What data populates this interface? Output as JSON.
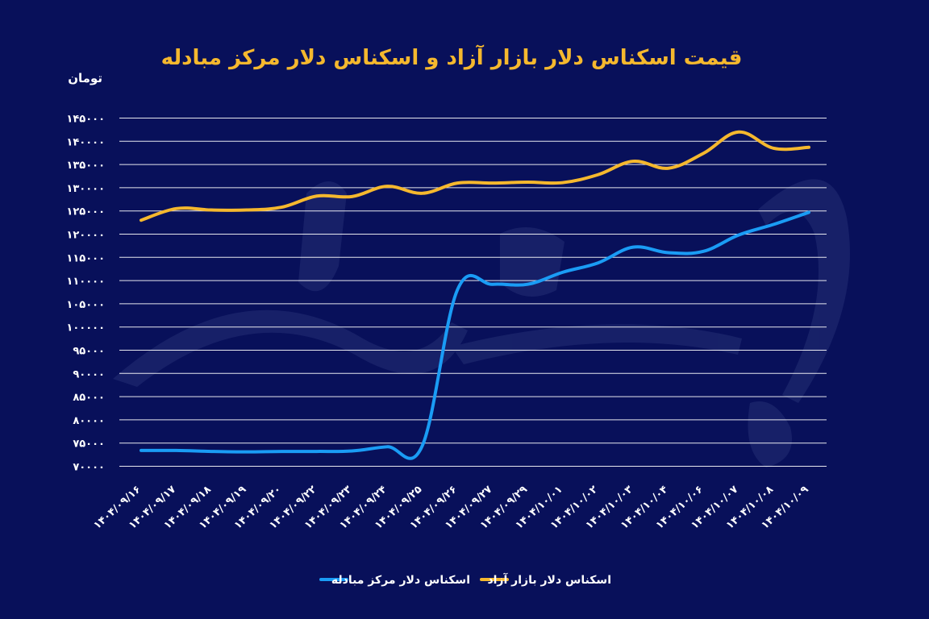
{
  "chart_data": {
    "type": "line",
    "title": "قیمت اسکناس دلار بازار آزاد و اسکناس دلار مرکز مبادله",
    "ylabel": "تومان",
    "ylim": [
      70000,
      145000
    ],
    "yticks": [
      70000,
      75000,
      80000,
      85000,
      90000,
      95000,
      100000,
      105000,
      110000,
      115000,
      120000,
      125000,
      130000,
      135000,
      140000,
      145000
    ],
    "ytick_labels": [
      "۷۰۰۰۰",
      "۷۵۰۰۰",
      "۸۰۰۰۰",
      "۸۵۰۰۰",
      "۹۰۰۰۰",
      "۹۵۰۰۰",
      "۱۰۰۰۰۰",
      "۱۰۵۰۰۰",
      "۱۱۰۰۰۰",
      "۱۱۵۰۰۰",
      "۱۲۰۰۰۰",
      "۱۲۵۰۰۰",
      "۱۳۰۰۰۰",
      "۱۳۵۰۰۰",
      "۱۴۰۰۰۰",
      "۱۴۵۰۰۰"
    ],
    "categories": [
      "۱۴۰۴/۰۹/۱۶",
      "۱۴۰۴/۰۹/۱۷",
      "۱۴۰۴/۰۹/۱۸",
      "۱۴۰۴/۰۹/۱۹",
      "۱۴۰۴/۰۹/۲۰",
      "۱۴۰۴/۰۹/۲۲",
      "۱۴۰۴/۰۹/۲۳",
      "۱۴۰۴/۰۹/۲۴",
      "۱۴۰۴/۰۹/۲۵",
      "۱۴۰۴/۰۹/۲۶",
      "۱۴۰۴/۰۹/۲۷",
      "۱۴۰۴/۰۹/۲۹",
      "۱۴۰۴/۱۰/۰۱",
      "۱۴۰۴/۱۰/۰۲",
      "۱۴۰۴/۱۰/۰۳",
      "۱۴۰۴/۱۰/۰۴",
      "۱۴۰۴/۱۰/۰۶",
      "۱۴۰۴/۱۰/۰۷",
      "۱۴۰۴/۱۰/۰۸",
      "۱۴۰۴/۱۰/۰۹"
    ],
    "grid": true,
    "legend_position": "bottom-center",
    "series": [
      {
        "name": "اسکناس دلار بازار آزاد",
        "color": "#f5b82e",
        "values": [
          123000,
          125500,
          125200,
          125200,
          125800,
          128200,
          128100,
          130300,
          128800,
          131000,
          131000,
          131200,
          131100,
          132800,
          135700,
          134200,
          137400,
          142000,
          138500,
          138700
        ]
      },
      {
        "name": "اسکناس دلار مرکز مبادله",
        "color": "#1a9cf5",
        "values": [
          73400,
          73400,
          73200,
          73100,
          73200,
          73200,
          73300,
          74200,
          74400,
          108000,
          109200,
          109200,
          111800,
          113800,
          117200,
          116000,
          116300,
          119800,
          122100,
          124700
        ]
      }
    ]
  }
}
